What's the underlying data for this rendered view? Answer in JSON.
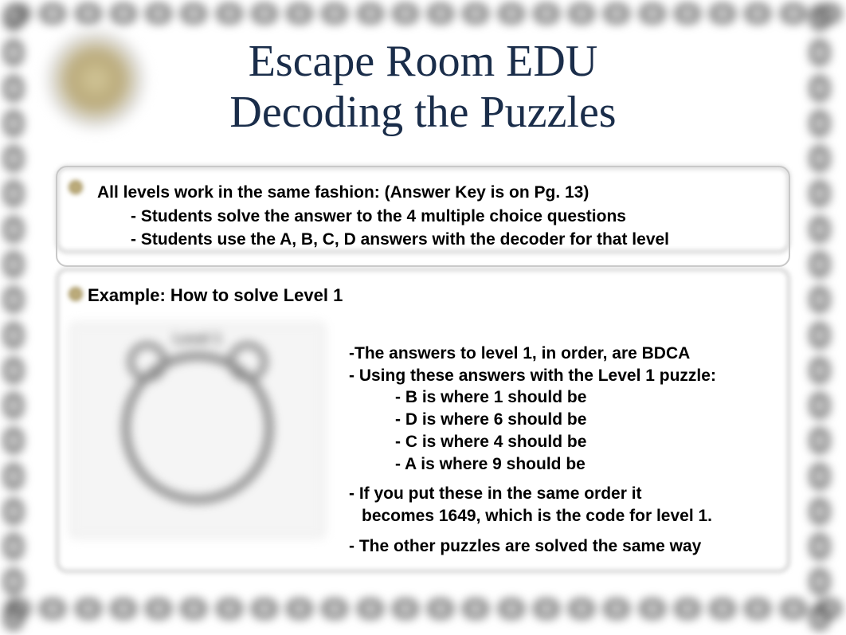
{
  "title": {
    "line1": "Escape Room EDU",
    "line2": "Decoding the Puzzles",
    "color": "#1a2d4a",
    "font_size": 56,
    "font_family": "Georgia, serif"
  },
  "box1": {
    "heading": "All levels work in the same fashion: (Answer Key is on Pg. 13)",
    "bullets": [
      "- Students solve the answer to the 4 multiple choice questions",
      "- Students use the A, B, C, D answers with the decoder for that level"
    ]
  },
  "box2": {
    "heading": "Example: How to solve Level 1",
    "clock_label": "Level 1",
    "right_lines": [
      "-The answers to level 1, in order, are BDCA",
      "- Using these answers with the Level 1 puzzle:"
    ],
    "right_sub": [
      "- B is where 1 should be",
      "- D is where 6 should be",
      "- C is where 4 should be",
      "- A is where 9 should be"
    ],
    "right_after1a": "- If you put these in the same order it",
    "right_after1b": "  becomes 1649, which is the code for level 1.",
    "right_after2": "- The other puzzles are solved the same way"
  },
  "style": {
    "body_font_size": 21,
    "body_color": "#000000",
    "border_color": "#c8c8c8",
    "border_radius": 14,
    "background": "#ffffff",
    "chain_color": "#555555"
  }
}
